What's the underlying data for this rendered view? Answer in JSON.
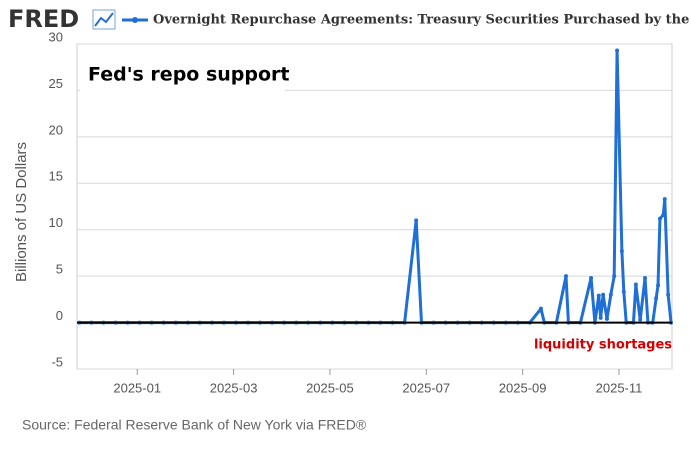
{
  "chart_data": {
    "type": "line",
    "logo": "FRED",
    "legend_label": "Overnight Repurchase Agreements: Treasury Securities Purchased by the Federal Reserve",
    "title": "Fed's repo support",
    "annotation": "liquidity shortages",
    "annotation_color": "#d40000",
    "ylabel": "Billions of US Dollars",
    "source": "Source: Federal Reserve Bank of New York via FRED®",
    "hline": 0,
    "grid": true,
    "xlim": [
      -0.25,
      12.1
    ],
    "xticks": [
      {
        "value": 1,
        "label": "2025-01"
      },
      {
        "value": 3,
        "label": "2025-03"
      },
      {
        "value": 5,
        "label": "2025-05"
      },
      {
        "value": 7,
        "label": "2025-07"
      },
      {
        "value": 9,
        "label": "2025-09"
      },
      {
        "value": 11,
        "label": "2025-11"
      }
    ],
    "ylim": [
      -5,
      30
    ],
    "yticks": [
      -5,
      0,
      5,
      10,
      15,
      20,
      25,
      30
    ],
    "series": [
      {
        "color": "#1f6fd6",
        "x": [
          -0.2,
          0.05,
          0.3,
          0.55,
          0.8,
          1.05,
          1.3,
          1.55,
          1.8,
          2.05,
          2.3,
          2.55,
          2.8,
          3.05,
          3.3,
          3.55,
          3.8,
          4.05,
          4.3,
          4.55,
          4.8,
          5.05,
          5.3,
          5.55,
          5.8,
          6.05,
          6.3,
          6.55,
          6.79,
          6.9,
          7.15,
          7.4,
          7.65,
          7.9,
          8.15,
          8.4,
          8.65,
          8.9,
          9.15,
          9.38,
          9.45,
          9.7,
          9.9,
          9.95,
          10.2,
          10.42,
          10.5,
          10.58,
          10.62,
          10.67,
          10.75,
          10.83,
          10.9,
          10.96,
          11.06,
          11.1,
          11.15,
          11.3,
          11.35,
          11.44,
          11.54,
          11.6,
          11.7,
          11.77,
          11.81,
          11.85,
          11.92,
          11.95,
          12.02,
          12.08
        ],
        "values": [
          0,
          0,
          0,
          0,
          0,
          0,
          0,
          0,
          0,
          0,
          0,
          0,
          0,
          0,
          0,
          0,
          0,
          0,
          0,
          0,
          0,
          0,
          0,
          0,
          0,
          0,
          0,
          0,
          11,
          0,
          0,
          0,
          0,
          0,
          0,
          0,
          0,
          0,
          0,
          1.5,
          0,
          0,
          5,
          0,
          0,
          4.8,
          0,
          2.9,
          0.5,
          3,
          0.4,
          3,
          5,
          29.3,
          7.7,
          3.3,
          0,
          0,
          4.1,
          0.3,
          4.8,
          0,
          0,
          2.6,
          4,
          11.2,
          11.6,
          13.3,
          3,
          0
        ]
      }
    ]
  }
}
